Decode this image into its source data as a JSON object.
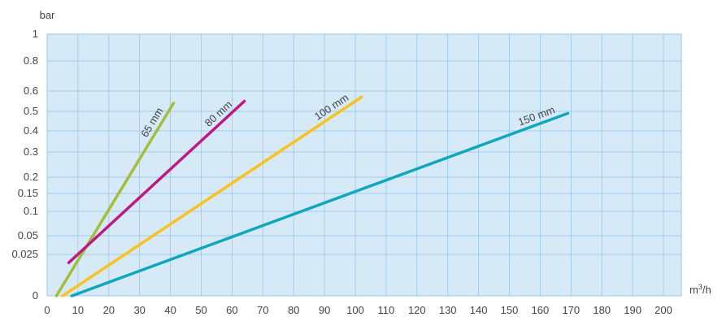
{
  "chart_data": {
    "type": "line",
    "ylabel": "bar",
    "xlabel_base": "m",
    "xlabel_sup": "3",
    "xlabel_suffix": "/h",
    "x_ticks": [
      0,
      10,
      20,
      30,
      40,
      50,
      60,
      70,
      80,
      90,
      100,
      110,
      120,
      130,
      140,
      150,
      160,
      170,
      180,
      190,
      200
    ],
    "x_tick_labels": [
      "0",
      "10",
      "20",
      "30",
      "40",
      "50",
      "60",
      "70",
      "80",
      "90",
      "100",
      "110",
      "120",
      "130",
      "140",
      "150",
      "160",
      "170",
      "180",
      "190",
      "200"
    ],
    "xlim": [
      0,
      210
    ],
    "y_tick_labels": [
      "1",
      "0.8",
      "0.6",
      "0.5",
      "0.4",
      "0.3",
      "0.2",
      "0.15",
      "0.1",
      "0.05",
      "0.025",
      "0"
    ],
    "grid": true,
    "colors": {
      "plot_background": "#d6e9f7",
      "grid_line": "#8fc3e8",
      "axis_line": "#9cc9ea"
    },
    "series": [
      {
        "name": "65 mm",
        "color": "#a3be3a",
        "x": [
          3,
          41
        ],
        "y": [
          0.0,
          0.54
        ]
      },
      {
        "name": "80 mm",
        "color": "#be1a83",
        "x": [
          7,
          64
        ],
        "y": [
          0.02,
          0.55
        ]
      },
      {
        "name": "100 mm",
        "color": "#f8c21f",
        "x": [
          5,
          102
        ],
        "y": [
          0.0,
          0.57
        ]
      },
      {
        "name": "150 mm",
        "color": "#10a7bd",
        "x": [
          8,
          169
        ],
        "y": [
          0.0,
          0.49
        ]
      }
    ]
  }
}
